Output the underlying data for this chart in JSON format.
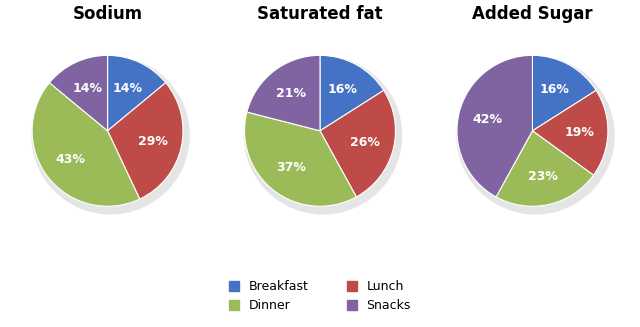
{
  "charts": [
    {
      "title": "Sodium",
      "values": [
        14,
        29,
        43,
        14
      ],
      "labels": [
        "14%",
        "29%",
        "43%",
        "14%"
      ],
      "order": [
        "Breakfast",
        "Lunch",
        "Dinner",
        "Snacks"
      ],
      "startangle": 90
    },
    {
      "title": "Saturated fat",
      "values": [
        16,
        26,
        37,
        21
      ],
      "labels": [
        "16%",
        "26%",
        "37%",
        "21%"
      ],
      "order": [
        "Breakfast",
        "Lunch",
        "Dinner",
        "Snacks"
      ],
      "startangle": 90
    },
    {
      "title": "Added Sugar",
      "values": [
        16,
        19,
        23,
        42
      ],
      "labels": [
        "16%",
        "19%",
        "23%",
        "42%"
      ],
      "order": [
        "Breakfast",
        "Lunch",
        "Dinner",
        "Snacks"
      ],
      "startangle": 90
    }
  ],
  "colors": {
    "Breakfast": "#4472C4",
    "Lunch": "#BE4B48",
    "Dinner": "#9BBB59",
    "Snacks": "#8064A2"
  },
  "legend_order": [
    "Breakfast",
    "Dinner",
    "Lunch",
    "Snacks"
  ],
  "text_color": "#FFFFFF",
  "background_color": "#FFFFFF",
  "title_fontsize": 12,
  "label_fontsize": 9,
  "shadow_color": "#CCCCCC"
}
